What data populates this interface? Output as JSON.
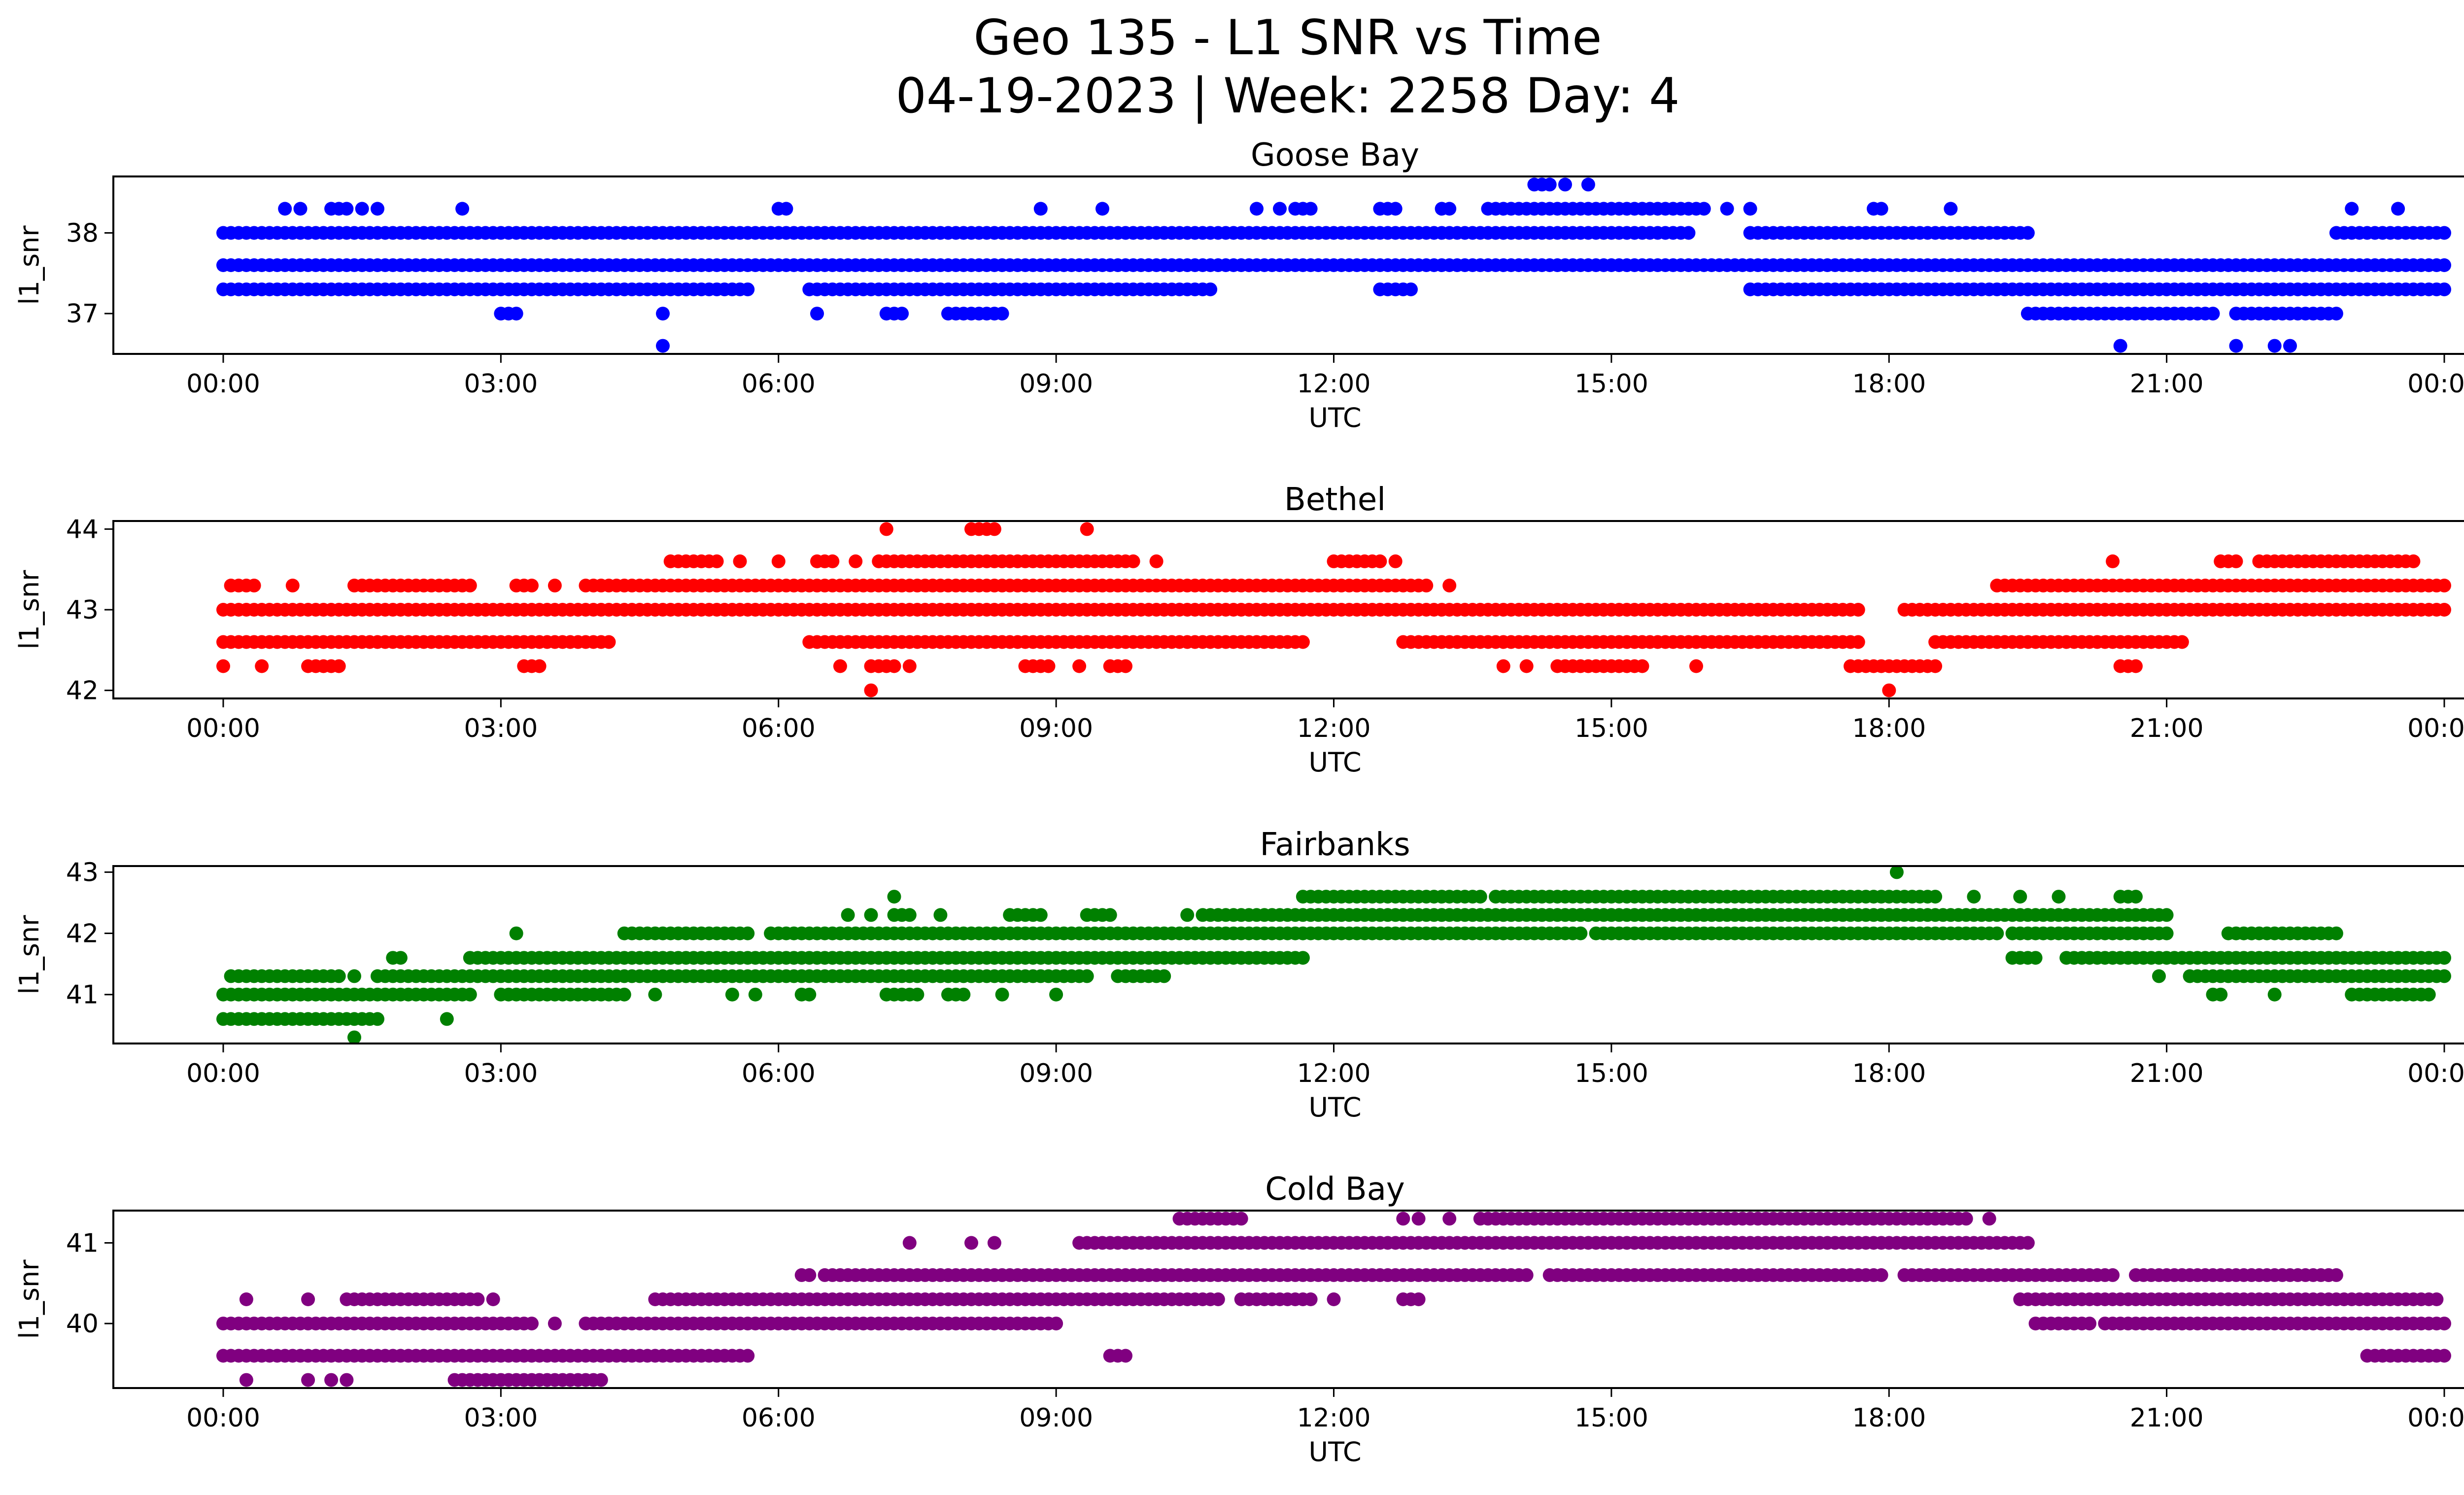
{
  "figure": {
    "title_line1": "Geo 135 - L1 SNR vs Time",
    "title_line2": "04-19-2023 | Week: 2258 Day: 4"
  },
  "chart_data": [
    {
      "type": "scatter",
      "title": "Goose Bay",
      "xlabel": "UTC",
      "ylabel": "l1_snr",
      "color": "#0000ff",
      "xlim": [
        "00:00",
        "24:00"
      ],
      "ylim": [
        36.5,
        38.7
      ],
      "yticks": [
        37,
        38
      ],
      "xticks": [
        "00:00",
        "03:00",
        "06:00",
        "09:00",
        "12:00",
        "15:00",
        "18:00",
        "21:00",
        "00:00"
      ],
      "grid": false,
      "series": [
        {
          "points": [
            {
              "y": 38.0,
              "x": [
                "00:00-03:00",
                "03:05-15:50",
                "16:30-19:30",
                "22:50-24:00"
              ]
            },
            {
              "y": 37.6,
              "x": [
                "00:00-24:00"
              ]
            },
            {
              "y": 37.3,
              "x": [
                "00:00-05:40",
                "06:20-10:40",
                "12:30-12:50",
                "16:30-24:00"
              ]
            },
            {
              "y": 37.0,
              "x": [
                "03:00-03:10",
                "04:45",
                "06:25",
                "07:10-07:20",
                "07:50-08:25",
                "19:30-21:30",
                "21:45-22:50"
              ]
            },
            {
              "y": 38.3,
              "x": [
                "00:40",
                "00:50",
                "01:10-01:20",
                "01:30",
                "01:40",
                "02:35",
                "06:00-06:05",
                "08:50",
                "09:30",
                "11:10",
                "11:25",
                "11:35-11:45",
                "12:30-12:40",
                "13:10-13:15",
                "13:40-16:00",
                "16:15",
                "16:30",
                "17:50",
                "17:55",
                "18:40",
                "23:00",
                "23:30"
              ]
            },
            {
              "y": 38.6,
              "x": [
                "14:10-14:20",
                "14:30",
                "14:45"
              ]
            },
            {
              "y": 36.6,
              "x": [
                "04:45",
                "20:30",
                "21:45",
                "22:10",
                "22:20"
              ]
            }
          ]
        }
      ]
    },
    {
      "type": "scatter",
      "title": "Bethel",
      "xlabel": "UTC",
      "ylabel": "l1_snr",
      "color": "#ff0000",
      "xlim": [
        "00:00",
        "24:00"
      ],
      "ylim": [
        41.9,
        44.1
      ],
      "yticks": [
        42,
        43,
        44
      ],
      "xticks": [
        "00:00",
        "03:00",
        "06:00",
        "09:00",
        "12:00",
        "15:00",
        "18:00",
        "21:00",
        "00:00"
      ],
      "grid": false,
      "series": [
        {
          "points": [
            {
              "y": 43.0,
              "x": [
                "00:00-17:40",
                "18:10-24:00"
              ]
            },
            {
              "y": 42.6,
              "x": [
                "00:00-04:10",
                "06:20-11:40",
                "12:45-17:40",
                "18:30-21:10"
              ]
            },
            {
              "y": 43.3,
              "x": [
                "00:05-00:20",
                "00:45",
                "01:25-02:40",
                "03:10-03:20",
                "03:35",
                "03:55-13:00",
                "13:15",
                "19:10-21:00",
                "21:00-24:00"
              ]
            },
            {
              "y": 43.6,
              "x": [
                "04:50-05:20",
                "05:35",
                "06:00",
                "06:25-06:35",
                "06:50",
                "07:05-09:50",
                "10:05",
                "12:00-12:30",
                "12:40",
                "20:25",
                "21:35-21:45",
                "22:00-23:40"
              ]
            },
            {
              "y": 42.3,
              "x": [
                "00:00",
                "00:25",
                "00:55-01:15",
                "03:15-03:25",
                "06:40",
                "07:00-07:15",
                "07:25",
                "08:40-08:55",
                "09:15",
                "09:35-09:45",
                "13:50",
                "14:05",
                "14:25-15:20",
                "15:55",
                "17:35-18:30",
                "20:30-20:40"
              ]
            },
            {
              "y": 44.0,
              "x": [
                "07:10",
                "08:05-08:20",
                "09:20"
              ]
            },
            {
              "y": 42.0,
              "x": [
                "07:00",
                "18:00"
              ]
            }
          ]
        }
      ]
    },
    {
      "type": "scatter",
      "title": "Fairbanks",
      "xlabel": "UTC",
      "ylabel": "l1_snr",
      "color": "#008000",
      "xlim": [
        "00:00",
        "24:00"
      ],
      "ylim": [
        40.2,
        43.1
      ],
      "yticks": [
        41,
        42,
        43
      ],
      "xticks": [
        "00:00",
        "03:00",
        "06:00",
        "09:00",
        "12:00",
        "15:00",
        "18:00",
        "21:00",
        "00:00"
      ],
      "grid": false,
      "series": [
        {
          "points": [
            {
              "y": 41.0,
              "x": [
                "00:00-02:40",
                "03:00-04:20",
                "04:40",
                "05:30",
                "05:45",
                "06:15-06:20",
                "07:10-07:30",
                "07:50-08:00",
                "08:25",
                "09:00",
                "21:30-21:35",
                "22:10",
                "23:00-23:50"
              ]
            },
            {
              "y": 40.6,
              "x": [
                "00:00-01:40",
                "02:25"
              ]
            },
            {
              "y": 40.3,
              "x": [
                "01:25"
              ]
            },
            {
              "y": 41.3,
              "x": [
                "00:05-01:15",
                "01:25",
                "01:40-09:20",
                "09:40-10:10",
                "20:55",
                "21:15-24:00"
              ]
            },
            {
              "y": 41.6,
              "x": [
                "01:50-01:55",
                "02:40-11:40",
                "19:20-19:35",
                "19:55-24:00"
              ]
            },
            {
              "y": 42.0,
              "x": [
                "03:10",
                "04:20-05:40",
                "05:55-14:40",
                "14:50-19:10",
                "19:20-21:00",
                "21:40-22:50"
              ]
            },
            {
              "y": 42.3,
              "x": [
                "06:45",
                "07:00",
                "07:15-07:25",
                "07:45",
                "08:30-08:50",
                "09:20-09:35",
                "10:25",
                "10:35-21:00"
              ]
            },
            {
              "y": 42.6,
              "x": [
                "07:15",
                "11:40-13:35",
                "13:45-18:30",
                "18:55",
                "19:25",
                "19:50",
                "20:30-20:40"
              ]
            },
            {
              "y": 43.0,
              "x": [
                "18:05"
              ]
            }
          ]
        }
      ]
    },
    {
      "type": "scatter",
      "title": "Cold Bay",
      "xlabel": "UTC",
      "ylabel": "l1_snr",
      "color": "#800080",
      "xlim": [
        "00:00",
        "24:00"
      ],
      "ylim": [
        39.2,
        41.4
      ],
      "yticks": [
        40,
        41
      ],
      "xticks": [
        "00:00",
        "03:00",
        "06:00",
        "09:00",
        "12:00",
        "15:00",
        "18:00",
        "21:00",
        "00:00"
      ],
      "grid": false,
      "series": [
        {
          "points": [
            {
              "y": 40.0,
              "x": [
                "00:00-03:20",
                "03:35",
                "03:55-09:00",
                "19:35-20:10",
                "20:20-24:00"
              ]
            },
            {
              "y": 39.6,
              "x": [
                "00:00-05:40",
                "09:35-09:45",
                "23:10-24:00"
              ]
            },
            {
              "y": 39.3,
              "x": [
                "00:15",
                "00:55",
                "01:10",
                "01:20",
                "02:30-04:05"
              ]
            },
            {
              "y": 40.3,
              "x": [
                "00:15",
                "00:55",
                "01:20-02:45",
                "02:55",
                "04:40-10:45",
                "11:00-11:45",
                "12:00",
                "12:45-12:55",
                "19:25-23:55"
              ]
            },
            {
              "y": 40.6,
              "x": [
                "06:15-06:20",
                "06:30-14:05",
                "14:20-17:55",
                "18:10-20:25",
                "20:40-22:50",
                "22:45"
              ]
            },
            {
              "y": 41.0,
              "x": [
                "07:25",
                "08:05",
                "08:20",
                "09:15-19:30"
              ]
            },
            {
              "y": 41.3,
              "x": [
                "10:20-11:00",
                "12:45",
                "12:55",
                "13:15",
                "13:35-18:50",
                "19:05"
              ]
            }
          ]
        }
      ]
    }
  ]
}
